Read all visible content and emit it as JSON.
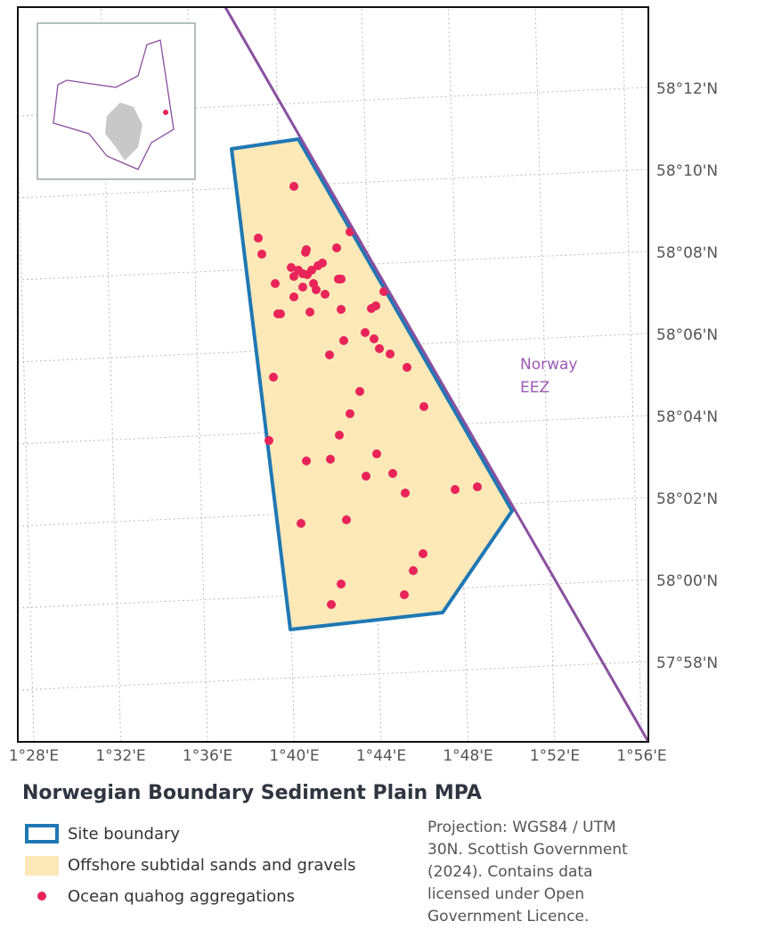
{
  "map": {
    "lat_labels": [
      "58°12'N",
      "58°10'N",
      "58°08'N",
      "58°06'N",
      "58°04'N",
      "58°02'N",
      "58°00'N",
      "57°58'N"
    ],
    "lon_labels": [
      "1°28'E",
      "1°32'E",
      "1°36'E",
      "1°40'E",
      "1°44'E",
      "1°48'E",
      "1°52'E",
      "1°56'E"
    ],
    "eez_label": [
      "Norway",
      "EEZ"
    ]
  },
  "title": "Norwegian Boundary Sediment Plain MPA",
  "legend": [
    "Site boundary",
    "Offshore subtidal sands and gravels",
    "Ocean quahog aggregations"
  ],
  "note": [
    "Projection: WGS84 / UTM",
    "30N. Scottish Government",
    "(2024). Contains data",
    "licensed under Open",
    "Government Licence."
  ]
}
